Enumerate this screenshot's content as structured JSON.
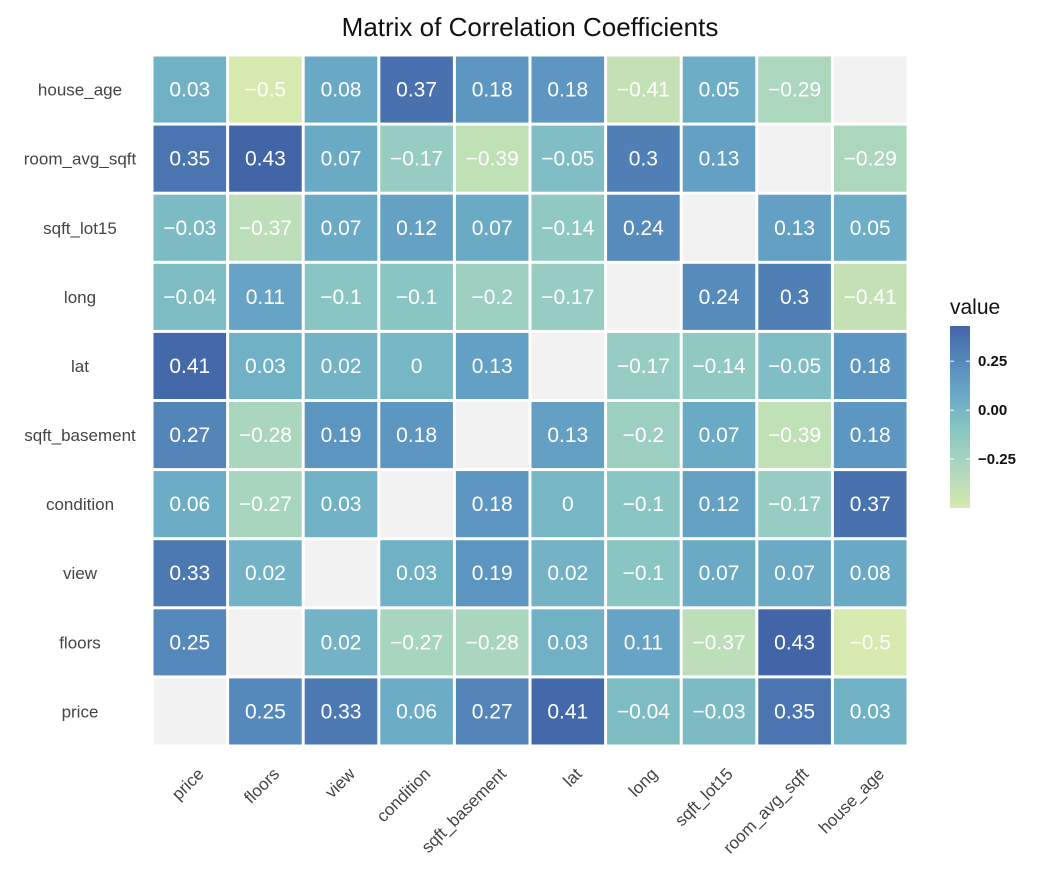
{
  "chart_data": {
    "type": "heatmap",
    "title": "Matrix of Correlation Coefficients",
    "x_categories": [
      "price",
      "floors",
      "view",
      "condition",
      "sqft_basement",
      "lat",
      "long",
      "sqft_lot15",
      "room_avg_sqft",
      "house_age"
    ],
    "y_categories_top_to_bottom": [
      "house_age",
      "room_avg_sqft",
      "sqft_lot15",
      "long",
      "lat",
      "sqft_basement",
      "condition",
      "view",
      "floors",
      "price"
    ],
    "values": [
      [
        0.03,
        -0.5,
        0.08,
        0.37,
        0.18,
        0.18,
        -0.41,
        0.05,
        -0.29,
        null
      ],
      [
        0.35,
        0.43,
        0.07,
        -0.17,
        -0.39,
        -0.05,
        0.3,
        0.13,
        null,
        -0.29
      ],
      [
        -0.03,
        -0.37,
        0.07,
        0.12,
        0.07,
        -0.14,
        0.24,
        null,
        0.13,
        0.05
      ],
      [
        -0.04,
        0.11,
        -0.1,
        -0.1,
        -0.2,
        -0.17,
        null,
        0.24,
        0.3,
        -0.41
      ],
      [
        0.41,
        0.03,
        0.02,
        0,
        0.13,
        null,
        -0.17,
        -0.14,
        -0.05,
        0.18
      ],
      [
        0.27,
        -0.28,
        0.19,
        0.18,
        null,
        0.13,
        -0.2,
        0.07,
        -0.39,
        0.18
      ],
      [
        0.06,
        -0.27,
        0.03,
        null,
        0.18,
        0,
        -0.1,
        0.12,
        -0.17,
        0.37
      ],
      [
        0.33,
        0.02,
        null,
        0.03,
        0.19,
        0.02,
        -0.1,
        0.07,
        0.07,
        0.08
      ],
      [
        0.25,
        null,
        0.02,
        -0.27,
        -0.28,
        0.03,
        0.11,
        -0.37,
        0.43,
        -0.5
      ],
      [
        null,
        0.25,
        0.33,
        0.06,
        0.27,
        0.41,
        -0.04,
        -0.03,
        0.35,
        0.03
      ]
    ],
    "value_labels": [
      [
        "0.03",
        "−0.5",
        "0.08",
        "0.37",
        "0.18",
        "0.18",
        "−0.41",
        "0.05",
        "−0.29",
        ""
      ],
      [
        "0.35",
        "0.43",
        "0.07",
        "−0.17",
        "−0.39",
        "−0.05",
        "0.3",
        "0.13",
        "",
        "−0.29"
      ],
      [
        "−0.03",
        "−0.37",
        "0.07",
        "0.12",
        "0.07",
        "−0.14",
        "0.24",
        "",
        "0.13",
        "0.05"
      ],
      [
        "−0.04",
        "0.11",
        "−0.1",
        "−0.1",
        "−0.2",
        "−0.17",
        "",
        "0.24",
        "0.3",
        "−0.41"
      ],
      [
        "0.41",
        "0.03",
        "0.02",
        "0",
        "0.13",
        "",
        "−0.17",
        "−0.14",
        "−0.05",
        "0.18"
      ],
      [
        "0.27",
        "−0.28",
        "0.19",
        "0.18",
        "",
        "0.13",
        "−0.2",
        "0.07",
        "−0.39",
        "0.18"
      ],
      [
        "0.06",
        "−0.27",
        "0.03",
        "",
        "0.18",
        "0",
        "−0.1",
        "0.12",
        "−0.17",
        "0.37"
      ],
      [
        "0.33",
        "0.02",
        "",
        "0.03",
        "0.19",
        "0.02",
        "−0.1",
        "0.07",
        "0.07",
        "0.08"
      ],
      [
        "0.25",
        "",
        "0.02",
        "−0.27",
        "−0.28",
        "0.03",
        "0.11",
        "−0.37",
        "0.43",
        "−0.5"
      ],
      [
        "",
        "0.25",
        "0.33",
        "0.06",
        "0.27",
        "0.41",
        "−0.04",
        "−0.03",
        "0.35",
        "0.03"
      ]
    ],
    "missing_color": "#f2f2f2",
    "legend": {
      "title": "value",
      "position": "right",
      "range": [
        -0.5,
        0.43
      ],
      "ticks": [
        0.25,
        0.0,
        -0.25
      ],
      "tick_labels": [
        "0.25",
        "0.00",
        "−0.25"
      ]
    },
    "colorscale": [
      {
        "stop": -0.5,
        "color": "#d6e9ae"
      },
      {
        "stop": -0.3,
        "color": "#aed8bd"
      },
      {
        "stop": -0.1,
        "color": "#89c5c3"
      },
      {
        "stop": 0.05,
        "color": "#6daec6"
      },
      {
        "stop": 0.2,
        "color": "#5b93c0"
      },
      {
        "stop": 0.43,
        "color": "#4265a8"
      }
    ]
  }
}
